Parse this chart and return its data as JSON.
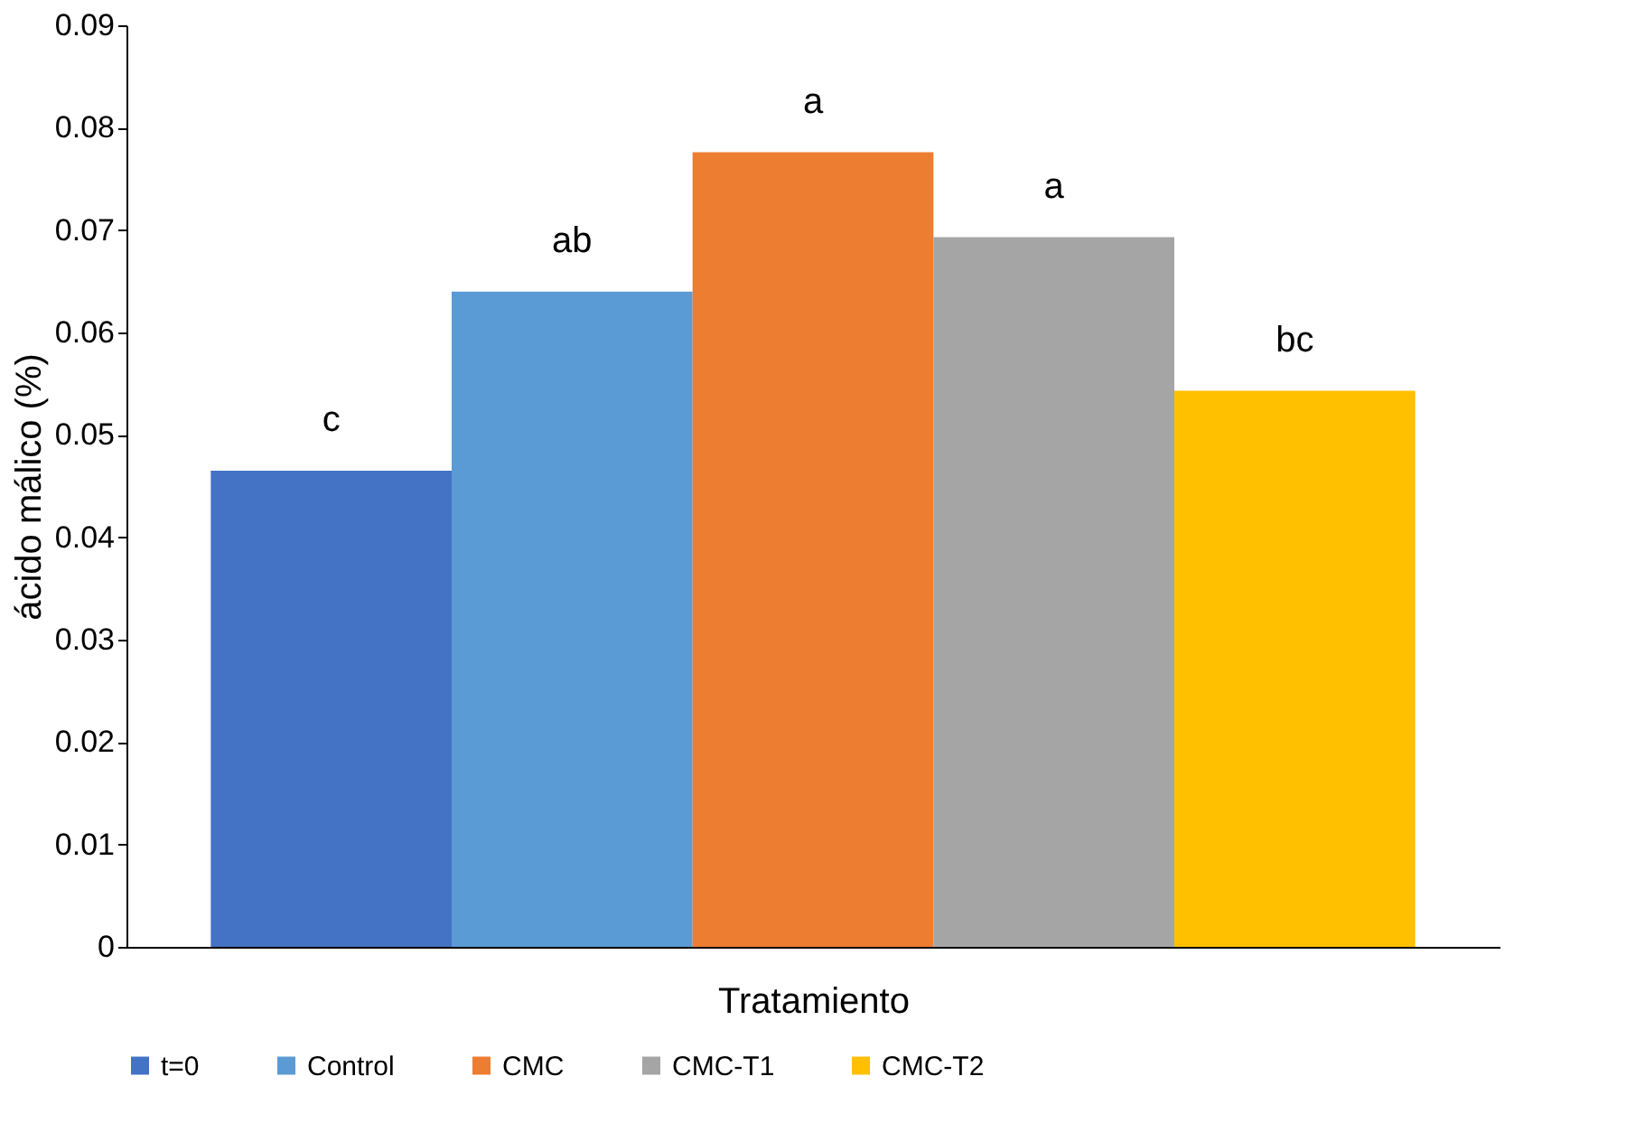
{
  "chart_data": {
    "type": "bar",
    "xlabel": "Tratamiento",
    "ylabel": "ácido málico (%)",
    "categories": [
      null
    ],
    "series": [
      {
        "name": "t=0",
        "color": "#4472c4",
        "values": [
          0.0465
        ]
      },
      {
        "name": "Control",
        "color": "#5b9bd5",
        "values": [
          0.064
        ]
      },
      {
        "name": "CMC",
        "color": "#ed7d31",
        "values": [
          0.0776
        ]
      },
      {
        "name": "CMC-T1",
        "color": "#a5a5a5",
        "values": [
          0.0693
        ]
      },
      {
        "name": "CMC-T2",
        "color": "#ffc000",
        "values": [
          0.0543
        ]
      }
    ],
    "annotations": [
      "c",
      "ab",
      "a",
      "a",
      "bc"
    ],
    "ylim": [
      0,
      0.09
    ],
    "yticks": [
      0,
      0.01,
      0.02,
      0.03,
      0.04,
      0.05,
      0.06,
      0.07,
      0.08,
      0.09
    ],
    "grid": false,
    "legend": "bottom"
  }
}
